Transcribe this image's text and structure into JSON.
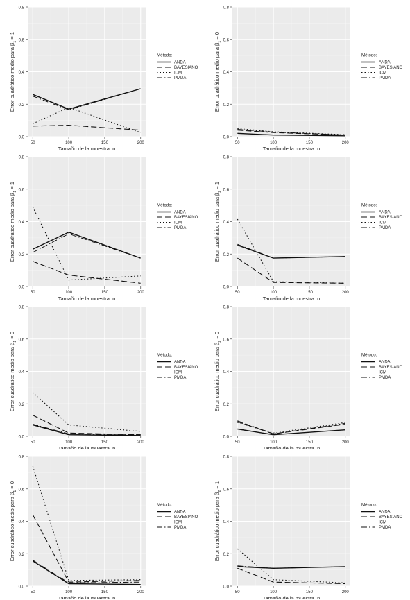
{
  "legend": {
    "title": "Método:",
    "entries": [
      "ANDA",
      "BAYESIANO",
      "ICM",
      "PMDA"
    ]
  },
  "xlabel": "Tamaño de la muestra, n",
  "chart_data": [
    {
      "type": "line",
      "ylabel": "Error cuadrático medio para  β",
      "sub": "1",
      "rhs": " = 1",
      "ylim": [
        0,
        0.8
      ],
      "x": [
        50,
        100,
        150,
        200
      ],
      "series": [
        {
          "name": "ANDA",
          "x": [
            50,
            100,
            200
          ],
          "values": [
            0.26,
            0.17,
            0.295
          ]
        },
        {
          "name": "BAYESIANO",
          "x": [
            50,
            100,
            200
          ],
          "values": [
            0.065,
            0.07,
            0.04
          ]
        },
        {
          "name": "ICM",
          "x": [
            50,
            100,
            200
          ],
          "values": [
            0.08,
            0.18,
            0.025
          ]
        },
        {
          "name": "PMDA",
          "x": [
            50,
            100,
            200
          ],
          "values": [
            0.25,
            0.165,
            0.295
          ]
        }
      ]
    },
    {
      "type": "line",
      "ylabel": "Error cuadrático medio para  β",
      "sub": "1",
      "rhs": " = 0",
      "ylim": [
        0,
        0.8
      ],
      "x": [
        50,
        100,
        150,
        200
      ],
      "series": [
        {
          "name": "ANDA",
          "x": [
            50,
            100,
            200
          ],
          "values": [
            0.02,
            0.01,
            0.005
          ]
        },
        {
          "name": "BAYESIANO",
          "x": [
            50,
            100,
            200
          ],
          "values": [
            0.04,
            0.025,
            0.01
          ]
        },
        {
          "name": "ICM",
          "x": [
            50,
            100,
            200
          ],
          "values": [
            0.05,
            0.03,
            0.012
          ]
        },
        {
          "name": "PMDA",
          "x": [
            50,
            100,
            200
          ],
          "values": [
            0.045,
            0.028,
            0.01
          ]
        }
      ]
    },
    {
      "type": "line",
      "ylabel": "Error cuadrático medio para  β",
      "sub": "1",
      "rhs": " = 1",
      "ylim": [
        0,
        0.8
      ],
      "x": [
        50,
        100,
        150,
        200
      ],
      "series": [
        {
          "name": "ANDA",
          "x": [
            50,
            100,
            200
          ],
          "values": [
            0.23,
            0.335,
            0.175
          ]
        },
        {
          "name": "BAYESIANO",
          "x": [
            50,
            100,
            200
          ],
          "values": [
            0.155,
            0.07,
            0.02
          ]
        },
        {
          "name": "ICM",
          "x": [
            50,
            100,
            200
          ],
          "values": [
            0.49,
            0.04,
            0.065
          ]
        },
        {
          "name": "PMDA",
          "x": [
            50,
            100,
            200
          ],
          "values": [
            0.21,
            0.325,
            0.175
          ]
        }
      ]
    },
    {
      "type": "line",
      "ylabel": "Error cuadrático medio para  β",
      "sub": "2",
      "rhs": " = 1",
      "ylim": [
        0,
        0.8
      ],
      "x": [
        50,
        100,
        150,
        200
      ],
      "series": [
        {
          "name": "ANDA",
          "x": [
            50,
            100,
            200
          ],
          "values": [
            0.255,
            0.175,
            0.185
          ]
        },
        {
          "name": "BAYESIANO",
          "x": [
            50,
            100,
            200
          ],
          "values": [
            0.175,
            0.025,
            0.02
          ]
        },
        {
          "name": "ICM",
          "x": [
            50,
            100,
            200
          ],
          "values": [
            0.415,
            0.03,
            0.02
          ]
        },
        {
          "name": "PMDA",
          "x": [
            50,
            100,
            200
          ],
          "values": [
            0.26,
            0.175,
            0.185
          ]
        }
      ]
    },
    {
      "type": "line",
      "ylabel": "Error cuadrático medio para  β",
      "sub": "1",
      "rhs": " = 0",
      "ylim": [
        0,
        0.8
      ],
      "x": [
        50,
        100,
        150,
        200
      ],
      "series": [
        {
          "name": "ANDA",
          "x": [
            50,
            100,
            200
          ],
          "values": [
            0.07,
            0.01,
            0.005
          ]
        },
        {
          "name": "BAYESIANO",
          "x": [
            50,
            100,
            200
          ],
          "values": [
            0.13,
            0.02,
            0.01
          ]
        },
        {
          "name": "ICM",
          "x": [
            50,
            100,
            200
          ],
          "values": [
            0.27,
            0.07,
            0.03
          ]
        },
        {
          "name": "PMDA",
          "x": [
            50,
            100,
            200
          ],
          "values": [
            0.075,
            0.015,
            0.01
          ]
        }
      ]
    },
    {
      "type": "line",
      "ylabel": "Error cuadrático medio para  β",
      "sub": "2",
      "rhs": " = 0",
      "ylim": [
        0,
        0.8
      ],
      "x": [
        50,
        100,
        150,
        200
      ],
      "series": [
        {
          "name": "ANDA",
          "x": [
            50,
            100,
            200
          ],
          "values": [
            0.045,
            0.01,
            0.04
          ]
        },
        {
          "name": "BAYESIANO",
          "x": [
            50,
            100,
            200
          ],
          "values": [
            0.095,
            0.015,
            0.075
          ]
        },
        {
          "name": "ICM",
          "x": [
            50,
            100,
            200
          ],
          "values": [
            0.085,
            0.02,
            0.085
          ]
        },
        {
          "name": "PMDA",
          "x": [
            50,
            100,
            200
          ],
          "values": [
            0.09,
            0.015,
            0.08
          ]
        }
      ]
    },
    {
      "type": "line",
      "ylabel": "Error cuadrático medio para  β",
      "sub": "1",
      "rhs": " = 0",
      "ylim": [
        0,
        0.8
      ],
      "x": [
        50,
        100,
        150,
        200
      ],
      "series": [
        {
          "name": "ANDA",
          "x": [
            50,
            100,
            200
          ],
          "values": [
            0.155,
            0.015,
            0.01
          ]
        },
        {
          "name": "BAYESIANO",
          "x": [
            50,
            100,
            200
          ],
          "values": [
            0.44,
            0.025,
            0.035
          ]
        },
        {
          "name": "ICM",
          "x": [
            50,
            100,
            200
          ],
          "values": [
            0.74,
            0.035,
            0.04
          ]
        },
        {
          "name": "PMDA",
          "x": [
            50,
            100,
            200
          ],
          "values": [
            0.16,
            0.02,
            0.025
          ]
        }
      ]
    },
    {
      "type": "line",
      "ylabel": "Error cuadrático medio para  β",
      "sub": "2",
      "rhs": " = 1",
      "ylim": [
        0,
        0.8
      ],
      "x": [
        50,
        100,
        150,
        200
      ],
      "series": [
        {
          "name": "ANDA",
          "x": [
            50,
            100,
            200
          ],
          "values": [
            0.12,
            0.11,
            0.12
          ]
        },
        {
          "name": "BAYESIANO",
          "x": [
            50,
            100,
            200
          ],
          "values": [
            0.11,
            0.025,
            0.015
          ]
        },
        {
          "name": "ICM",
          "x": [
            50,
            100,
            200
          ],
          "values": [
            0.23,
            0.04,
            0.02
          ]
        },
        {
          "name": "PMDA",
          "x": [
            50,
            100,
            200
          ],
          "values": [
            0.125,
            0.11,
            0.12
          ]
        }
      ]
    }
  ]
}
